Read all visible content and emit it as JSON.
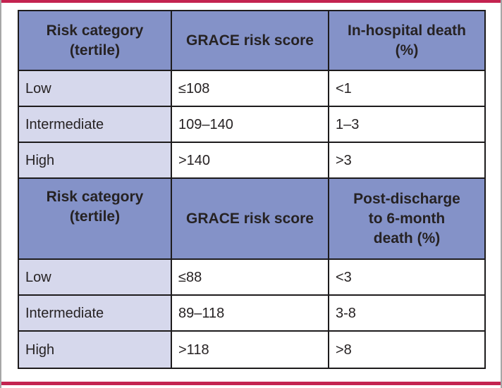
{
  "colors": {
    "accent_red": "#c42350",
    "frame_gray": "#a7a7a7",
    "line_black": "#1d1b1c",
    "header_bg": "#8492c8",
    "row_label_bg": "#d6d8ec",
    "cell_bg": "#ffffff",
    "text_color": "#262223"
  },
  "table1": {
    "header": {
      "col1": [
        "Risk category",
        "(tertile)"
      ],
      "col2": [
        "GRACE risk score"
      ],
      "col3": [
        "In-hospital death",
        "(%)"
      ]
    },
    "rows": [
      {
        "category": "Low",
        "score": "≤108",
        "death": "<1"
      },
      {
        "category": "Intermediate",
        "score": "109–140",
        "death": "1–3"
      },
      {
        "category": "High",
        "score": ">140",
        "death": ">3"
      }
    ]
  },
  "table2": {
    "header": {
      "col1": [
        "Risk category",
        "(tertile)"
      ],
      "col2": [
        "GRACE risk score"
      ],
      "col3": [
        "Post-discharge",
        "to 6-month",
        "death (%)"
      ]
    },
    "rows": [
      {
        "category": "Low",
        "score": "≤88",
        "death": "<3"
      },
      {
        "category": "Intermediate",
        "score": "89–118",
        "death": "3-8"
      },
      {
        "category": "High",
        "score": ">118",
        "death": ">8"
      }
    ]
  }
}
